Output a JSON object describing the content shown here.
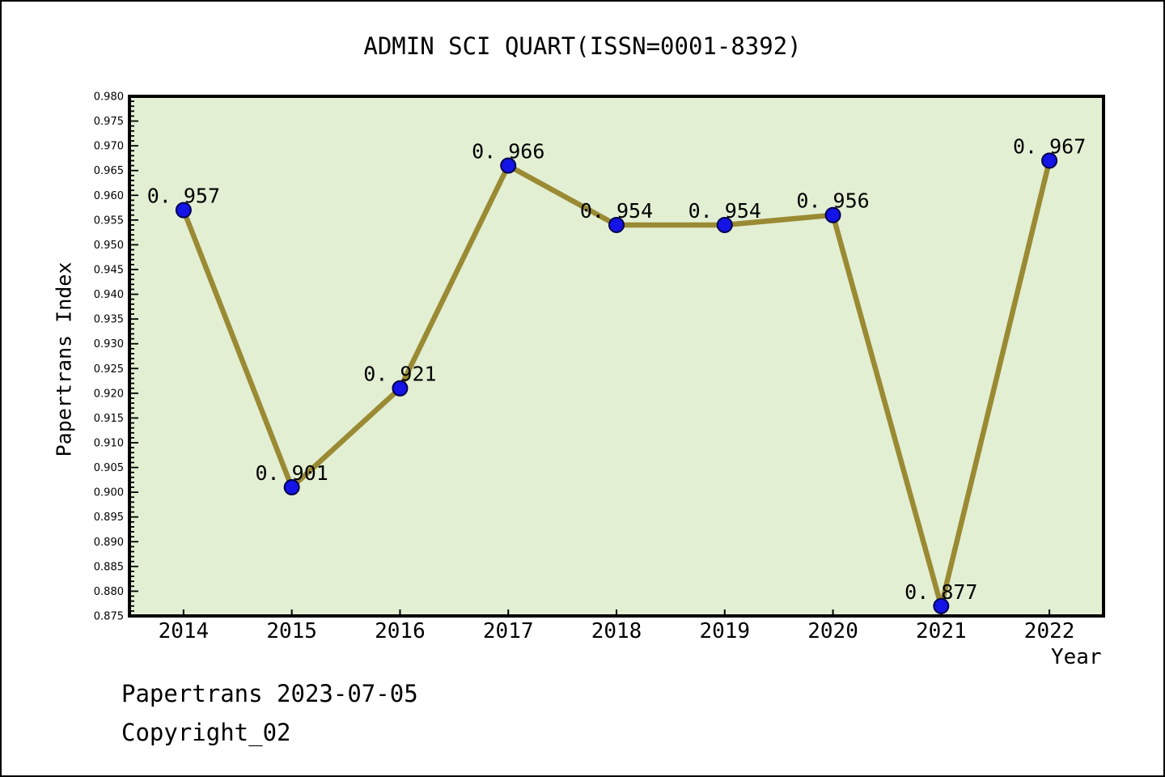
{
  "page": {
    "title": "ADMIN SCI QUART(ISSN=0001-8392)",
    "footer_line1": "Papertrans 2023-07-05",
    "footer_line2": "Copyright_02"
  },
  "chart_data": {
    "type": "line",
    "title": "ADMIN SCI QUART(ISSN=0001-8392)",
    "xlabel": "Year",
    "ylabel": "Papertrans Index",
    "x": [
      2014,
      2015,
      2016,
      2017,
      2018,
      2019,
      2020,
      2021,
      2022
    ],
    "values": [
      0.957,
      0.901,
      0.921,
      0.966,
      0.954,
      0.954,
      0.956,
      0.877,
      0.967
    ],
    "point_labels": [
      "0. 957",
      "0. 901",
      "0. 921",
      "0. 966",
      "0. 954",
      "0. 954",
      "0. 956",
      "0. 877",
      "0. 967"
    ],
    "xlim": [
      2013.5,
      2022.5
    ],
    "ylim": [
      0.875,
      0.98
    ],
    "y_major_step": 0.005,
    "y_minor_step": 0.001,
    "y_tick_decimals": 3,
    "grid": false,
    "legend": null,
    "colors": {
      "line": "#9a8a33",
      "marker_fill": "#1414e6",
      "marker_edge": "#00004d",
      "plot_bg": "#e3efd3",
      "axis": "#000000",
      "text": "#000000"
    }
  }
}
